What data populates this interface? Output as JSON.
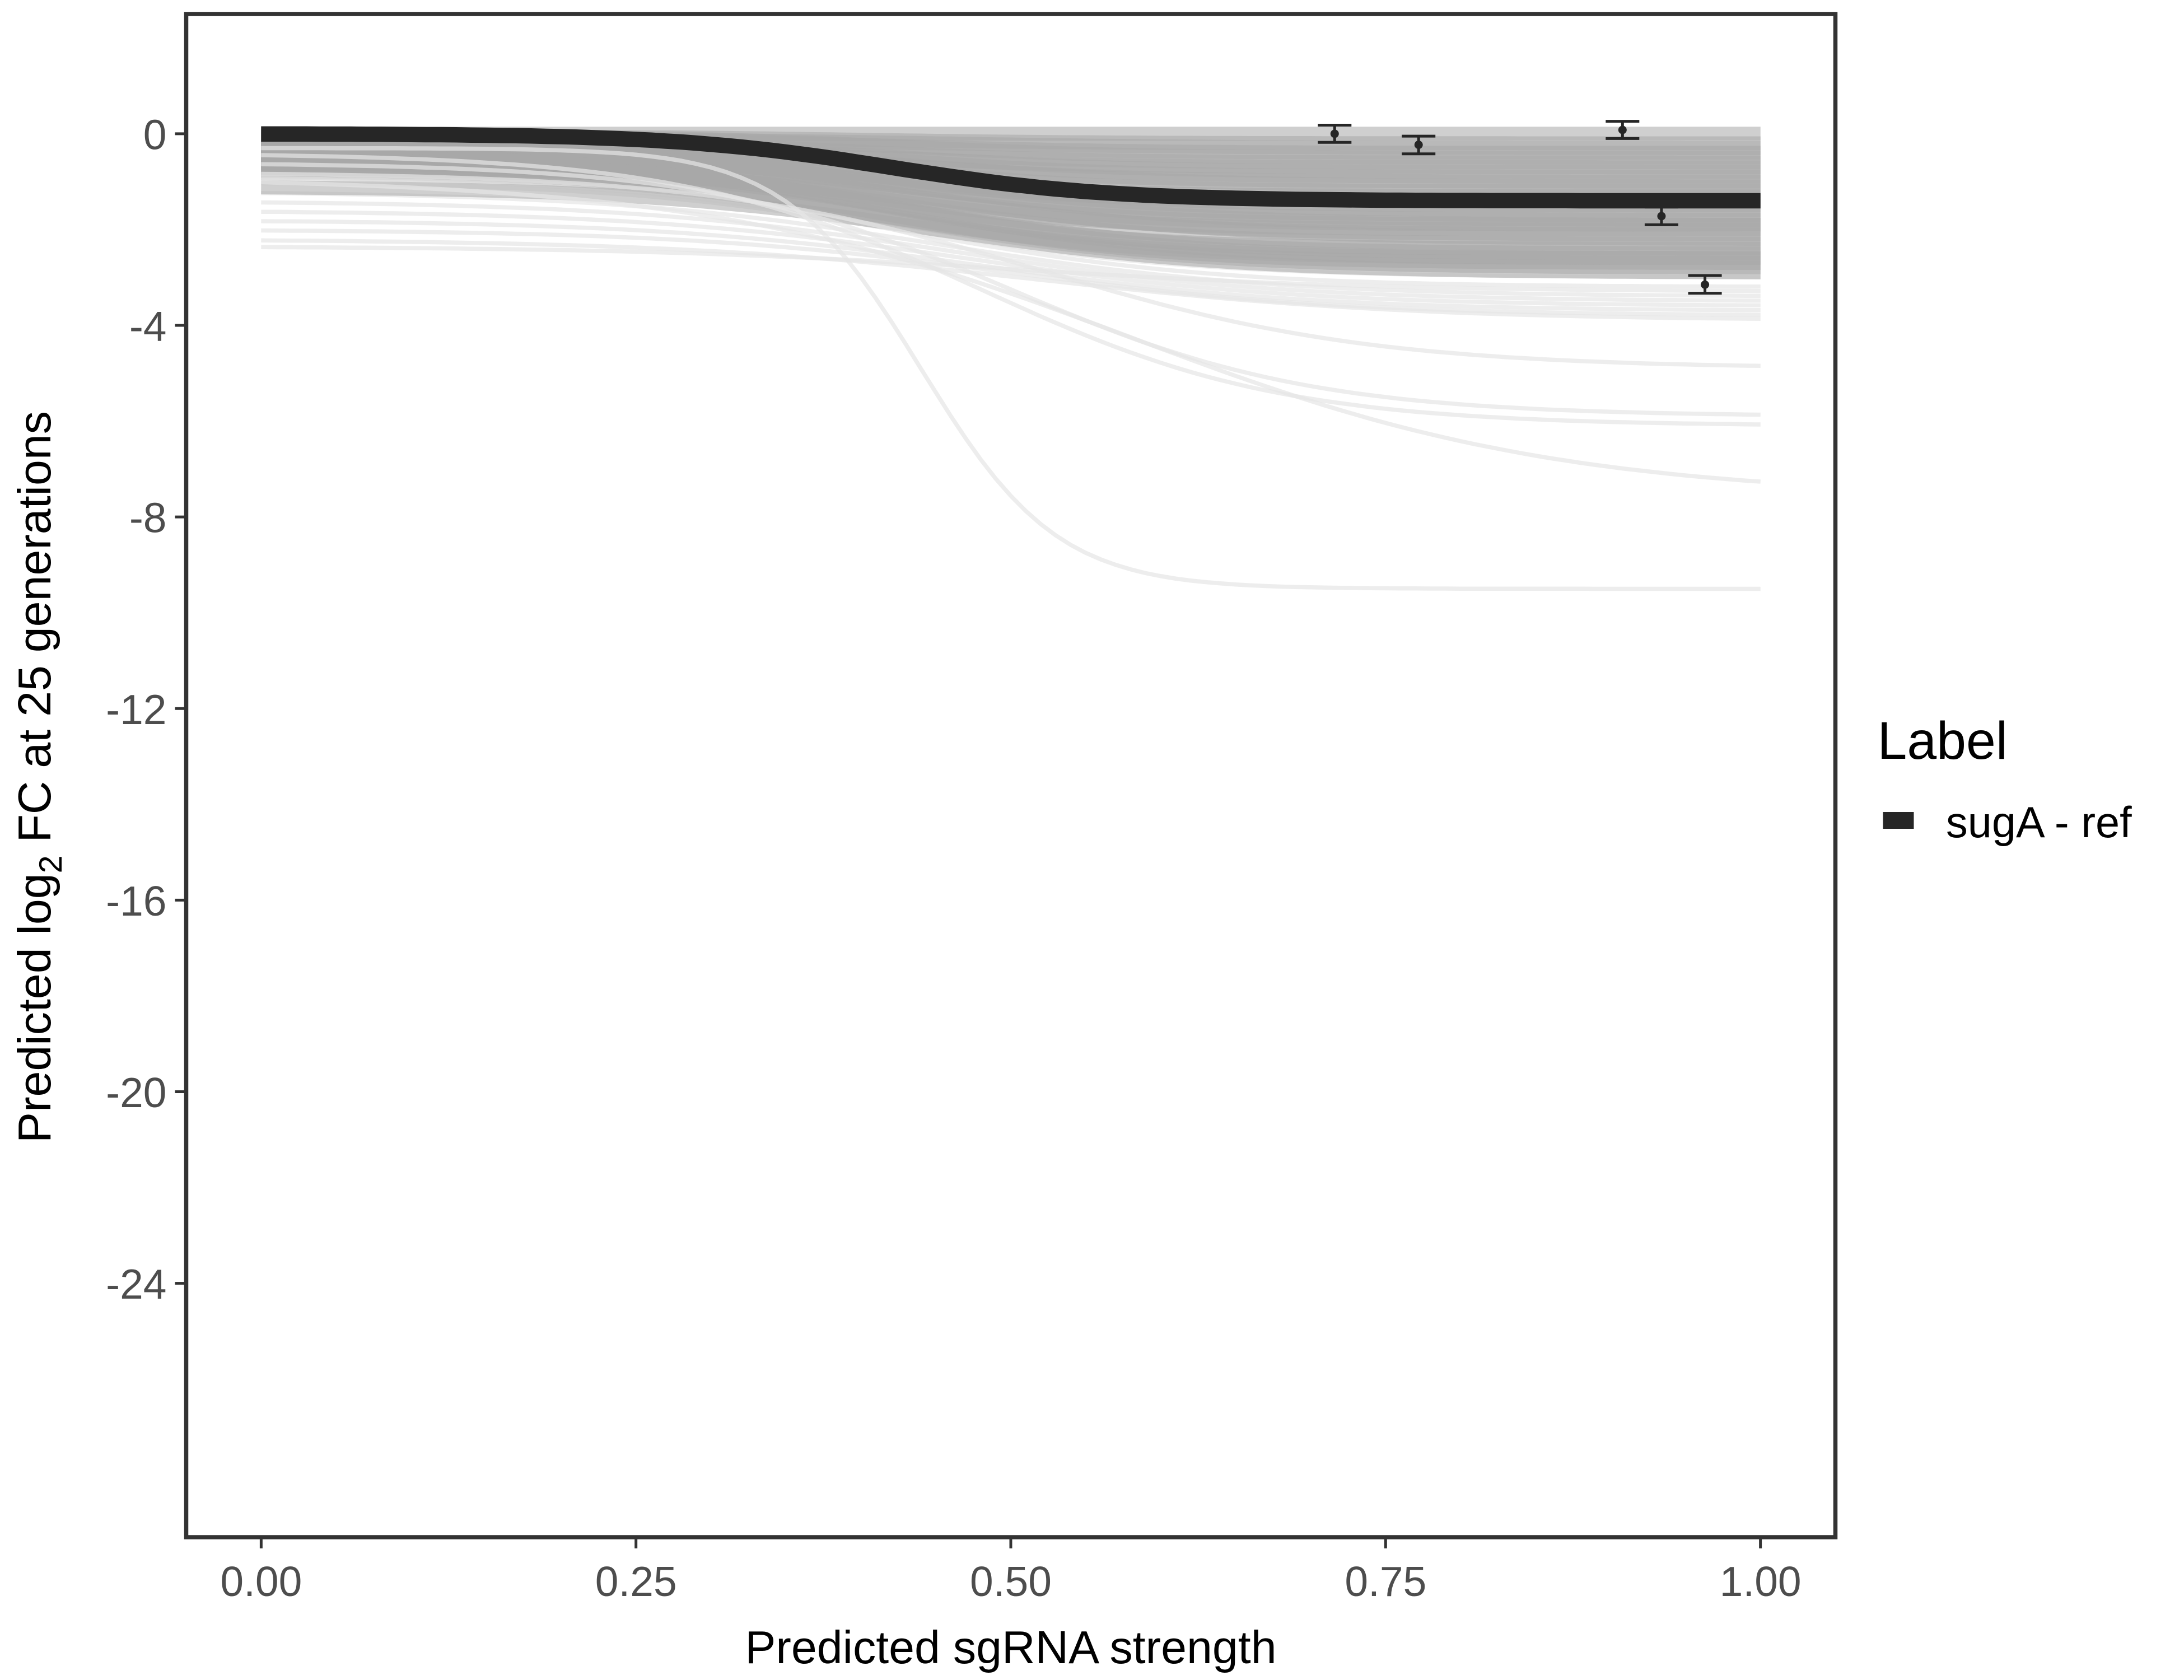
{
  "chart_data": {
    "type": "line",
    "title": "",
    "xlabel": "Predicted sgRNA strength",
    "ylabel": {
      "prefix": "Predicted  log",
      "subscript": "2",
      "suffix": " FC at 25 generations"
    },
    "xlim": [
      -0.05,
      1.05
    ],
    "ylim": [
      -29.3,
      2.5
    ],
    "x_ticks": [
      0,
      0.25,
      0.5,
      0.75,
      1
    ],
    "x_tick_labels": [
      "0.00",
      "0.25",
      "0.50",
      "0.75",
      "1.00"
    ],
    "y_ticks": [
      0,
      -4,
      -8,
      -12,
      -16,
      -20,
      -24
    ],
    "y_tick_labels": [
      "0",
      "-4",
      "-8",
      "-12",
      "-16",
      "-20",
      "-24"
    ],
    "grid": false,
    "legend": {
      "title": "Label",
      "position": "right",
      "entries": [
        {
          "name": "sugA - ref",
          "color": "#262626"
        }
      ]
    },
    "reference_curve": {
      "name": "sugA - ref",
      "color": "#262626",
      "form": "logistic",
      "start": 0.0,
      "end": -1.4,
      "midpoint": 0.42,
      "steepness": 14
    },
    "posterior_curves": {
      "color": "#a8a8a8",
      "form": "logistic",
      "fields": [
        "start",
        "end",
        "midpoint",
        "steepness"
      ],
      "curves": [
        [
          0,
          0,
          0.4,
          12
        ],
        [
          -0.05,
          -0.2,
          0.4,
          12
        ],
        [
          -0.1,
          -0.4,
          0.42,
          12
        ],
        [
          -0.15,
          -0.6,
          0.4,
          13
        ],
        [
          -0.2,
          -0.8,
          0.43,
          12
        ],
        [
          -0.25,
          -1.0,
          0.41,
          12
        ],
        [
          -0.3,
          -1.2,
          0.42,
          13
        ],
        [
          -0.35,
          -1.3,
          0.4,
          14
        ],
        [
          -0.4,
          -1.5,
          0.43,
          12
        ],
        [
          -0.45,
          -1.7,
          0.42,
          12
        ],
        [
          -0.5,
          -1.9,
          0.41,
          12
        ],
        [
          -0.55,
          -2.1,
          0.44,
          12
        ],
        [
          -0.6,
          -2.3,
          0.42,
          11
        ],
        [
          -0.65,
          -2.5,
          0.43,
          11
        ],
        [
          -0.7,
          -2.7,
          0.42,
          11
        ],
        [
          -0.1,
          -0.3,
          0.45,
          10
        ],
        [
          -0.2,
          -0.7,
          0.38,
          12
        ],
        [
          -0.3,
          -1.1,
          0.45,
          11
        ],
        [
          -0.4,
          -1.4,
          0.39,
          13
        ],
        [
          -0.5,
          -1.8,
          0.44,
          11
        ],
        [
          -0.6,
          -2.0,
          0.4,
          12
        ],
        [
          -0.7,
          -2.2,
          0.46,
          10
        ],
        [
          -0.8,
          -2.6,
          0.41,
          11
        ],
        [
          -0.05,
          -0.5,
          0.43,
          13
        ],
        [
          -0.15,
          -0.9,
          0.41,
          12
        ],
        [
          -0.25,
          -1.6,
          0.42,
          12
        ],
        [
          -0.35,
          -1.9,
          0.44,
          11
        ],
        [
          -0.45,
          -2.4,
          0.4,
          12
        ],
        [
          -0.55,
          -2.6,
          0.43,
          11
        ],
        [
          -0.75,
          -2.8,
          0.42,
          10
        ],
        [
          -0.9,
          -3.0,
          0.42,
          10
        ],
        [
          -1.0,
          -3.2,
          0.44,
          10
        ],
        [
          -1.2,
          -3.4,
          0.45,
          9
        ],
        [
          -1.4,
          -3.5,
          0.46,
          9
        ],
        [
          -1.6,
          -3.6,
          0.47,
          9
        ],
        [
          -1.8,
          -3.7,
          0.48,
          9
        ],
        [
          -2.0,
          -3.8,
          0.5,
          9
        ],
        [
          -2.2,
          -3.9,
          0.52,
          8
        ],
        [
          -2.35,
          -3.3,
          0.5,
          8
        ],
        [
          -1.1,
          -2.9,
          0.45,
          10
        ],
        [
          -0.8,
          -4.9,
          0.52,
          9
        ],
        [
          -0.6,
          -5.9,
          0.5,
          10
        ],
        [
          -0.4,
          -6.1,
          0.48,
          10
        ],
        [
          -0.9,
          -7.6,
          0.58,
          7
        ],
        [
          -0.3,
          -9.5,
          0.44,
          22
        ]
      ]
    },
    "points": [
      {
        "x": 0.716,
        "y": 0.0,
        "ymin": -0.18,
        "ymax": 0.18
      },
      {
        "x": 0.772,
        "y": -0.23,
        "ymin": -0.42,
        "ymax": -0.05
      },
      {
        "x": 0.908,
        "y": 0.08,
        "ymin": -0.1,
        "ymax": 0.26
      },
      {
        "x": 0.934,
        "y": -1.72,
        "ymin": -1.9,
        "ymax": -1.53
      },
      {
        "x": 0.963,
        "y": -3.15,
        "ymin": -3.33,
        "ymax": -2.96
      }
    ]
  }
}
